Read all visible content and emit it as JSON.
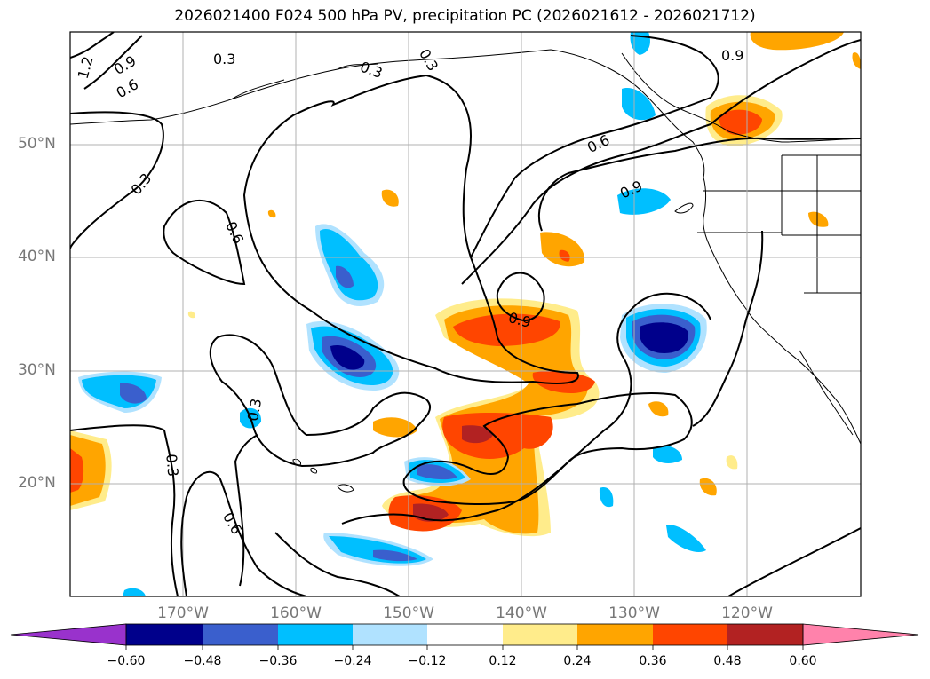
{
  "title": "2026021400 F024 500 hPa PV, precipitation PC (2026021612 - 2026021712)",
  "map": {
    "lat_labels": [
      "50°N",
      "40°N",
      "30°N",
      "20°N"
    ],
    "lon_labels": [
      "170°W",
      "160°W",
      "150°W",
      "140°W",
      "130°W",
      "120°W"
    ],
    "contour_labels": [
      "1.2",
      "0.9",
      "0.6",
      "0.3",
      "0.3",
      "0.3",
      "0.3",
      "0.6",
      "0.9",
      "0.6",
      "0.9",
      "0.9",
      "0.3",
      "0.3",
      "0.6"
    ]
  },
  "colorbar": {
    "ticks": [
      "−0.60",
      "−0.48",
      "−0.36",
      "−0.24",
      "−0.12",
      "0.12",
      "0.24",
      "0.36",
      "0.48",
      "0.60"
    ],
    "colors": [
      "#9932cc",
      "#00008b",
      "#3a5fcd",
      "#00bfff",
      "#b0e2ff",
      "#ffffff",
      "#ffec8b",
      "#ffa500",
      "#ff4500",
      "#b22222",
      "#ff82ab"
    ]
  }
}
